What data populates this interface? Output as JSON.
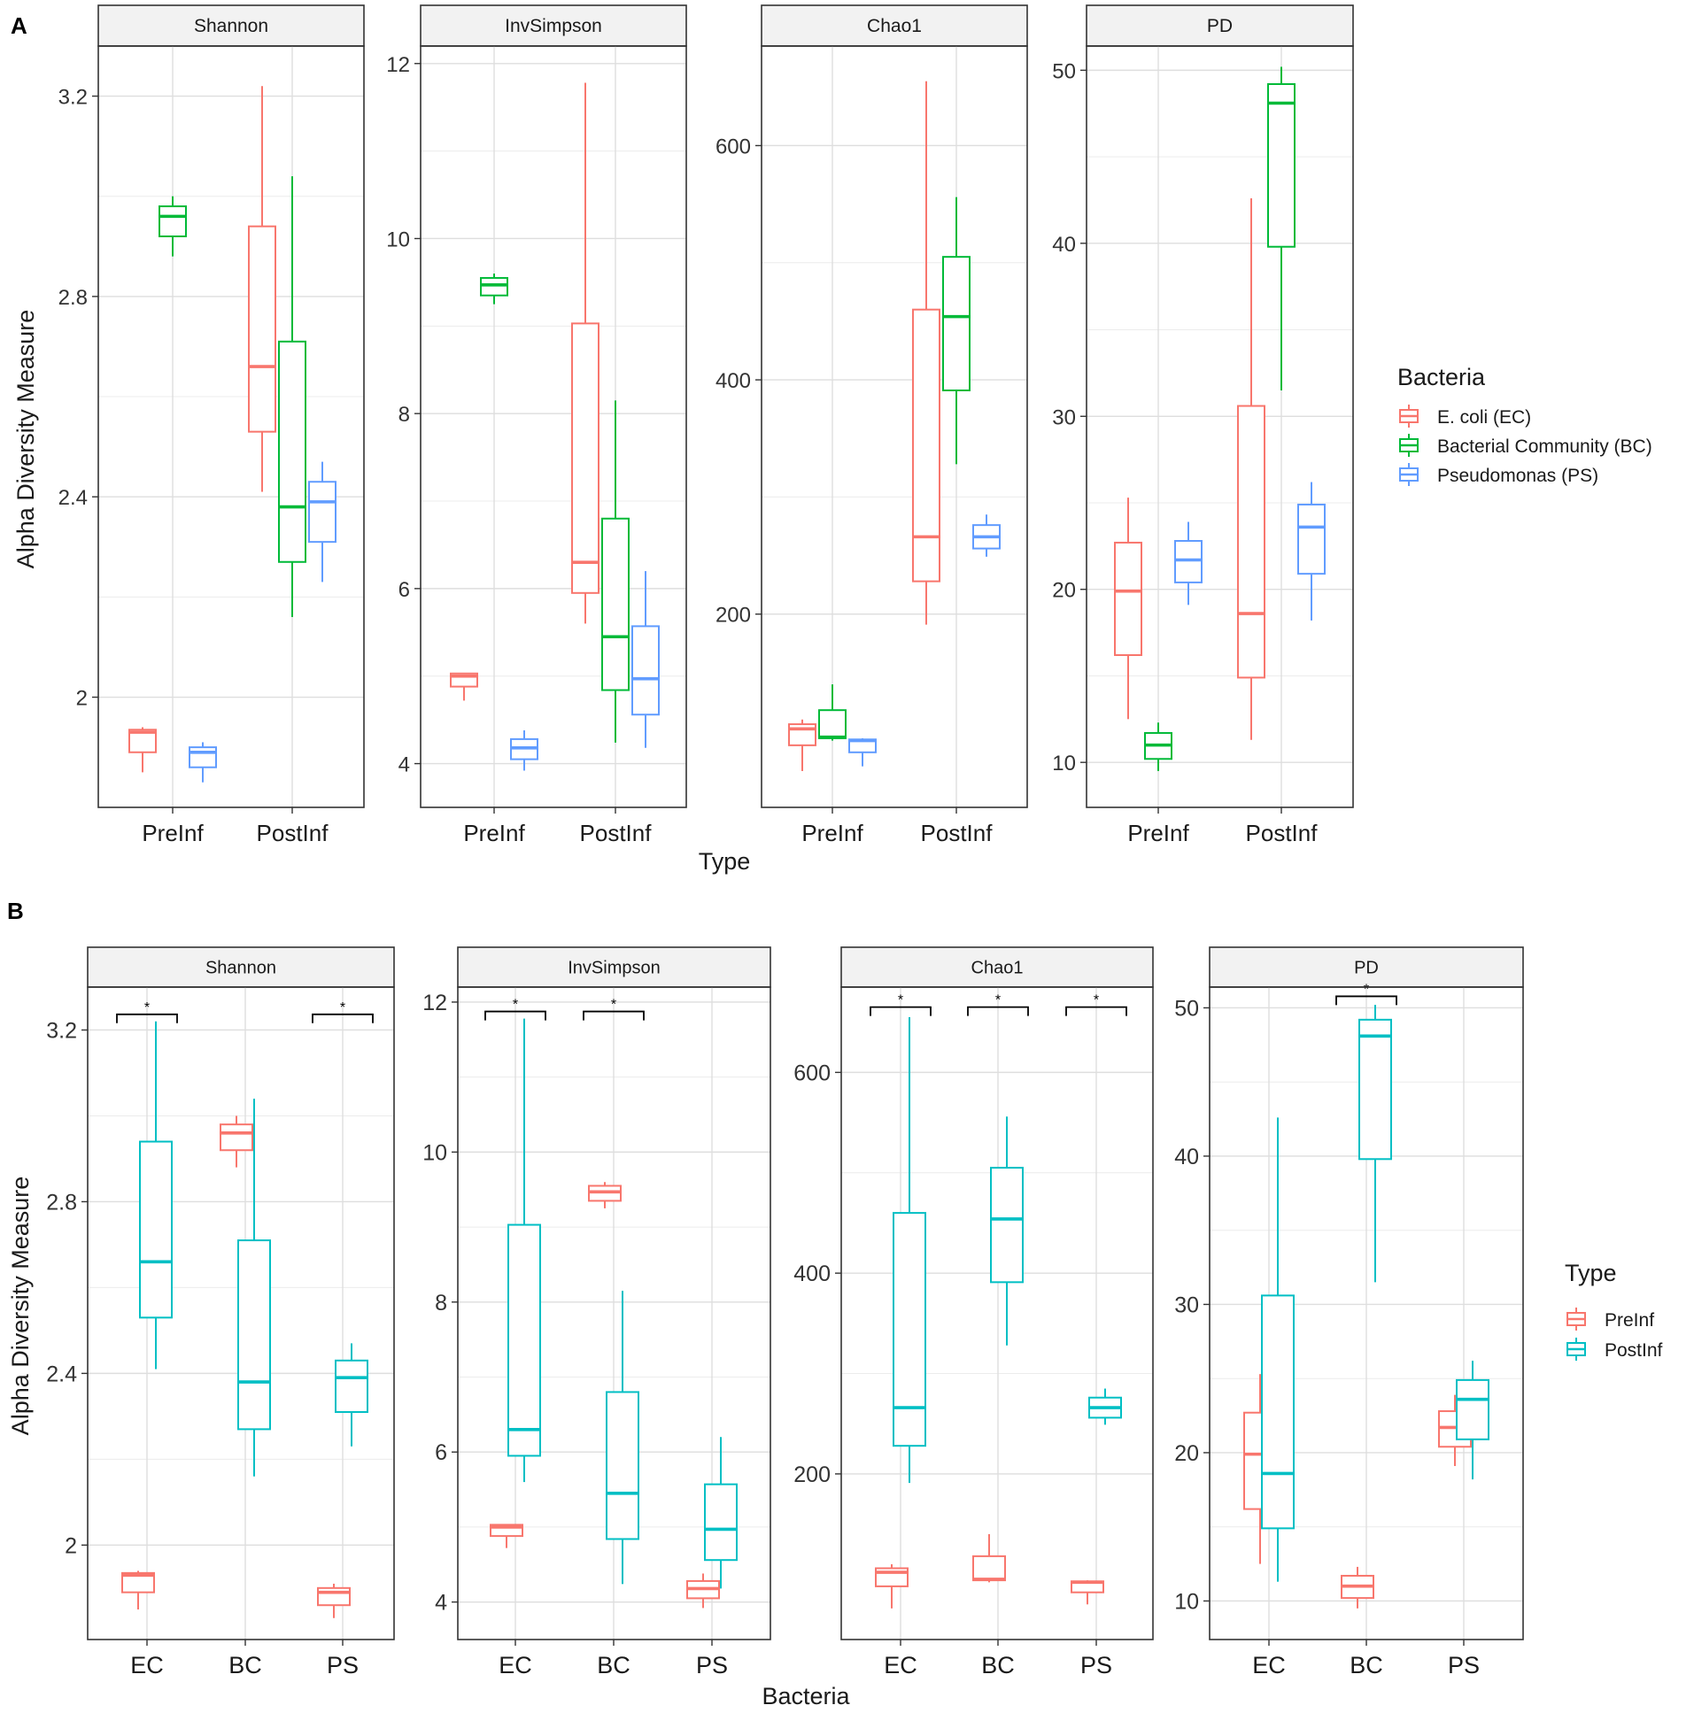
{
  "figure": {
    "panel_a_label": "A",
    "panel_b_label": "B"
  },
  "chart_data": [
    {
      "type": "boxplot",
      "panel": "A",
      "xlabel": "Type",
      "ylabel": "Alpha Diversity Measure",
      "categories": [
        "PreInf",
        "PostInf"
      ],
      "legend": {
        "title": "Bacteria",
        "placement": "right",
        "entries": [
          {
            "label": "E. coli (EC)",
            "color": "#F8766D"
          },
          {
            "label": "Bacterial Community (BC)",
            "color": "#00BA38"
          },
          {
            "label": "Pseudomonas (PS)",
            "color": "#619CFF"
          }
        ]
      },
      "facets": [
        {
          "title": "Shannon",
          "ylim": [
            1.78,
            3.3
          ],
          "yticks": [
            2.0,
            2.4,
            2.8,
            3.2
          ],
          "boxes": [
            {
              "category": "PreInf",
              "group": 0,
              "stats": [
                1.85,
                1.89,
                1.93,
                1.935,
                1.94
              ]
            },
            {
              "category": "PreInf",
              "group": 1,
              "stats": [
                2.88,
                2.92,
                2.96,
                2.98,
                3.0
              ]
            },
            {
              "category": "PreInf",
              "group": 2,
              "stats": [
                1.83,
                1.86,
                1.89,
                1.9,
                1.91
              ]
            },
            {
              "category": "PostInf",
              "group": 0,
              "stats": [
                2.41,
                2.53,
                2.66,
                2.94,
                3.22
              ]
            },
            {
              "category": "PostInf",
              "group": 1,
              "stats": [
                2.16,
                2.27,
                2.38,
                2.71,
                3.04
              ]
            },
            {
              "category": "PostInf",
              "group": 2,
              "stats": [
                2.23,
                2.31,
                2.39,
                2.43,
                2.47
              ]
            }
          ]
        },
        {
          "title": "InvSimpson",
          "ylim": [
            3.5,
            12.2
          ],
          "yticks": [
            4,
            6,
            8,
            10,
            12
          ],
          "boxes": [
            {
              "category": "PreInf",
              "group": 0,
              "stats": [
                4.72,
                4.88,
                5.0,
                5.03,
                5.03
              ]
            },
            {
              "category": "PreInf",
              "group": 1,
              "stats": [
                9.25,
                9.35,
                9.47,
                9.55,
                9.6
              ]
            },
            {
              "category": "PreInf",
              "group": 2,
              "stats": [
                3.92,
                4.05,
                4.18,
                4.28,
                4.38
              ]
            },
            {
              "category": "PostInf",
              "group": 0,
              "stats": [
                5.6,
                5.95,
                6.3,
                9.03,
                11.78
              ]
            },
            {
              "category": "PostInf",
              "group": 1,
              "stats": [
                4.24,
                4.84,
                5.45,
                6.8,
                8.15
              ]
            },
            {
              "category": "PostInf",
              "group": 2,
              "stats": [
                4.18,
                4.56,
                4.97,
                5.57,
                6.2
              ]
            }
          ]
        },
        {
          "title": "Chao1",
          "ylim": [
            35,
            685
          ],
          "yticks": [
            200,
            400,
            600
          ],
          "boxes": [
            {
              "category": "PreInf",
              "group": 0,
              "stats": [
                66,
                88,
                102,
                106,
                110
              ]
            },
            {
              "category": "PreInf",
              "group": 1,
              "stats": [
                92,
                94,
                95,
                118,
                140
              ]
            },
            {
              "category": "PreInf",
              "group": 2,
              "stats": [
                70,
                82,
                92,
                93,
                94
              ]
            },
            {
              "category": "PostInf",
              "group": 0,
              "stats": [
                191,
                228,
                266,
                460,
                655
              ]
            },
            {
              "category": "PostInf",
              "group": 1,
              "stats": [
                328,
                391,
                454,
                505,
                556
              ]
            },
            {
              "category": "PostInf",
              "group": 2,
              "stats": [
                249,
                256,
                266,
                276,
                285
              ]
            }
          ]
        },
        {
          "title": "PD",
          "ylim": [
            7.4,
            51.4
          ],
          "yticks": [
            10,
            20,
            30,
            40,
            50
          ],
          "boxes": [
            {
              "category": "PreInf",
              "group": 0,
              "stats": [
                12.5,
                16.2,
                19.9,
                22.7,
                25.3
              ]
            },
            {
              "category": "PreInf",
              "group": 1,
              "stats": [
                9.5,
                10.2,
                11.0,
                11.7,
                12.3
              ]
            },
            {
              "category": "PreInf",
              "group": 2,
              "stats": [
                19.1,
                20.4,
                21.7,
                22.8,
                23.9
              ]
            },
            {
              "category": "PostInf",
              "group": 0,
              "stats": [
                11.3,
                14.9,
                18.6,
                30.6,
                42.6
              ]
            },
            {
              "category": "PostInf",
              "group": 1,
              "stats": [
                31.5,
                39.8,
                48.1,
                49.2,
                50.2
              ]
            },
            {
              "category": "PostInf",
              "group": 2,
              "stats": [
                18.2,
                20.9,
                23.6,
                24.9,
                26.2
              ]
            }
          ]
        }
      ]
    },
    {
      "type": "boxplot",
      "panel": "B",
      "xlabel": "Bacteria",
      "ylabel": "Alpha Diversity Measure",
      "categories": [
        "EC",
        "BC",
        "PS"
      ],
      "legend": {
        "title": "Type",
        "placement": "right",
        "entries": [
          {
            "label": "PreInf",
            "color": "#F8766D"
          },
          {
            "label": "PostInf",
            "color": "#00BFC4"
          }
        ]
      },
      "facets": [
        {
          "title": "Shannon",
          "ylim": [
            1.78,
            3.3
          ],
          "yticks": [
            2.0,
            2.4,
            2.8,
            3.2
          ],
          "significance": [
            {
              "categories": [
                "EC"
              ],
              "label": "*",
              "y": 3.22
            },
            {
              "categories": [
                "PS"
              ],
              "label": "*",
              "y": 3.22
            }
          ],
          "boxes": [
            {
              "category": "EC",
              "group": 0,
              "stats": [
                1.85,
                1.89,
                1.93,
                1.935,
                1.94
              ]
            },
            {
              "category": "EC",
              "group": 1,
              "stats": [
                2.41,
                2.53,
                2.66,
                2.94,
                3.22
              ]
            },
            {
              "category": "BC",
              "group": 0,
              "stats": [
                2.88,
                2.92,
                2.96,
                2.98,
                3.0
              ]
            },
            {
              "category": "BC",
              "group": 1,
              "stats": [
                2.16,
                2.27,
                2.38,
                2.71,
                3.04
              ]
            },
            {
              "category": "PS",
              "group": 0,
              "stats": [
                1.83,
                1.86,
                1.89,
                1.9,
                1.91
              ]
            },
            {
              "category": "PS",
              "group": 1,
              "stats": [
                2.23,
                2.31,
                2.39,
                2.43,
                2.47
              ]
            }
          ]
        },
        {
          "title": "InvSimpson",
          "ylim": [
            3.5,
            12.2
          ],
          "yticks": [
            4,
            6,
            8,
            10,
            12
          ],
          "significance": [
            {
              "categories": [
                "EC"
              ],
              "label": "*",
              "y": 11.78
            },
            {
              "categories": [
                "BC"
              ],
              "label": "*",
              "y": 11.78
            }
          ],
          "boxes": [
            {
              "category": "EC",
              "group": 0,
              "stats": [
                4.72,
                4.88,
                5.0,
                5.03,
                5.03
              ]
            },
            {
              "category": "EC",
              "group": 1,
              "stats": [
                5.6,
                5.95,
                6.3,
                9.03,
                11.78
              ]
            },
            {
              "category": "BC",
              "group": 0,
              "stats": [
                9.25,
                9.35,
                9.47,
                9.55,
                9.6
              ]
            },
            {
              "category": "BC",
              "group": 1,
              "stats": [
                4.24,
                4.84,
                5.45,
                6.8,
                8.15
              ]
            },
            {
              "category": "PS",
              "group": 0,
              "stats": [
                3.92,
                4.05,
                4.18,
                4.28,
                4.38
              ]
            },
            {
              "category": "PS",
              "group": 1,
              "stats": [
                4.18,
                4.56,
                4.97,
                5.57,
                6.2
              ]
            }
          ]
        },
        {
          "title": "Chao1",
          "ylim": [
            35,
            685
          ],
          "yticks": [
            200,
            400,
            600
          ],
          "significance": [
            {
              "categories": [
                "EC"
              ],
              "label": "*",
              "y": 658
            },
            {
              "categories": [
                "BC"
              ],
              "label": "*",
              "y": 658
            },
            {
              "categories": [
                "PS"
              ],
              "label": "*",
              "y": 658
            }
          ],
          "boxes": [
            {
              "category": "EC",
              "group": 0,
              "stats": [
                66,
                88,
                102,
                106,
                110
              ]
            },
            {
              "category": "EC",
              "group": 1,
              "stats": [
                191,
                228,
                266,
                460,
                655
              ]
            },
            {
              "category": "BC",
              "group": 0,
              "stats": [
                92,
                94,
                95,
                118,
                140
              ]
            },
            {
              "category": "BC",
              "group": 1,
              "stats": [
                328,
                391,
                454,
                505,
                556
              ]
            },
            {
              "category": "PS",
              "group": 0,
              "stats": [
                70,
                82,
                92,
                93,
                94
              ]
            },
            {
              "category": "PS",
              "group": 1,
              "stats": [
                249,
                256,
                266,
                276,
                285
              ]
            }
          ]
        },
        {
          "title": "PD",
          "ylim": [
            7.4,
            51.4
          ],
          "yticks": [
            10,
            20,
            30,
            40,
            50
          ],
          "significance": [
            {
              "categories": [
                "BC"
              ],
              "label": "*",
              "y": 50.3
            }
          ],
          "boxes": [
            {
              "category": "EC",
              "group": 0,
              "stats": [
                12.5,
                16.2,
                19.9,
                22.7,
                25.3
              ]
            },
            {
              "category": "EC",
              "group": 1,
              "stats": [
                11.3,
                14.9,
                18.6,
                30.6,
                42.6
              ]
            },
            {
              "category": "BC",
              "group": 0,
              "stats": [
                9.5,
                10.2,
                11.0,
                11.7,
                12.3
              ]
            },
            {
              "category": "BC",
              "group": 1,
              "stats": [
                31.5,
                39.8,
                48.1,
                49.2,
                50.2
              ]
            },
            {
              "category": "PS",
              "group": 0,
              "stats": [
                19.1,
                20.4,
                21.7,
                22.8,
                23.9
              ]
            },
            {
              "category": "PS",
              "group": 1,
              "stats": [
                18.2,
                20.9,
                23.6,
                24.9,
                26.2
              ]
            }
          ]
        }
      ]
    }
  ]
}
